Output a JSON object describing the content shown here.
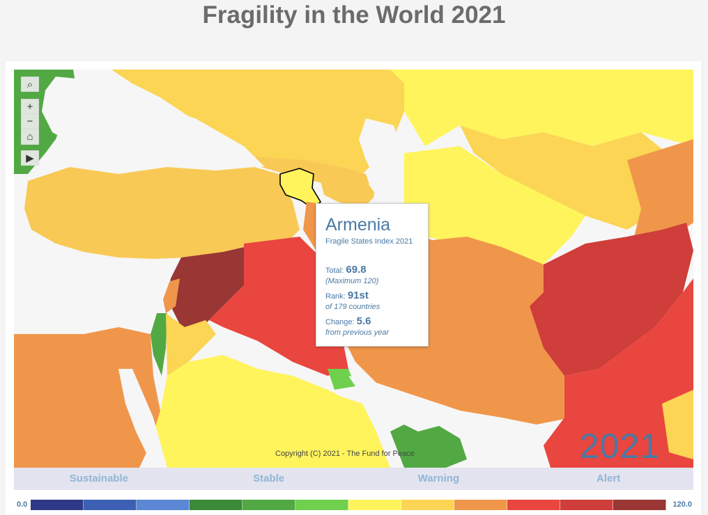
{
  "title": "Fragility in the World 2021",
  "year_watermark": "2021",
  "copyright": "Copyright (C) 2021 - The Fund for Peace",
  "toolbar": {
    "search_icon": "search-icon",
    "zoom_in_icon": "plus-icon",
    "zoom_out_icon": "minus-icon",
    "home_icon": "home-icon",
    "expand_icon": "play-arrow-icon"
  },
  "tooltip": {
    "country": "Armenia",
    "index_name": "Fragile States Index 2021",
    "total_label": "Total:",
    "total_value": "69.8",
    "total_note": "(Maximum 120)",
    "rank_label": "Rank:",
    "rank_value": "91st",
    "rank_note": "of 179 countries",
    "change_label": "Change:",
    "change_value": "5.6",
    "change_note": "from previous year"
  },
  "categories": [
    "Sustainable",
    "Stable",
    "Warning",
    "Alert"
  ],
  "scale": {
    "min_label": "0.0",
    "max_label": "120.0",
    "colors": [
      "#2e3a87",
      "#3d5fb4",
      "#5b87d4",
      "#3b8a38",
      "#52a944",
      "#6fd04d",
      "#fff45c",
      "#fbd553",
      "#f0964b",
      "#e9463f",
      "#cf3e3a",
      "#9a3633"
    ]
  },
  "region_colors": {
    "sea": "#f6f6f6",
    "turkey": "#f9c956",
    "russia": "#fbd553",
    "central_asia": "#fbd553",
    "turkmenistan": "#fff45c",
    "armenia": "#fff45c",
    "syria": "#983734",
    "iraq": "#e9463f",
    "iran": "#f0964b",
    "afghanistan": "#cf3e3a",
    "pakistan": "#e9463f",
    "saudi_arabia": "#fff45c",
    "jordan": "#fbd553",
    "israel": "#52a944",
    "kuwait": "#6fd04d",
    "egypt": "#f0964b",
    "cyprus": "#6fd04d",
    "qatar_uae": "#52a944"
  }
}
